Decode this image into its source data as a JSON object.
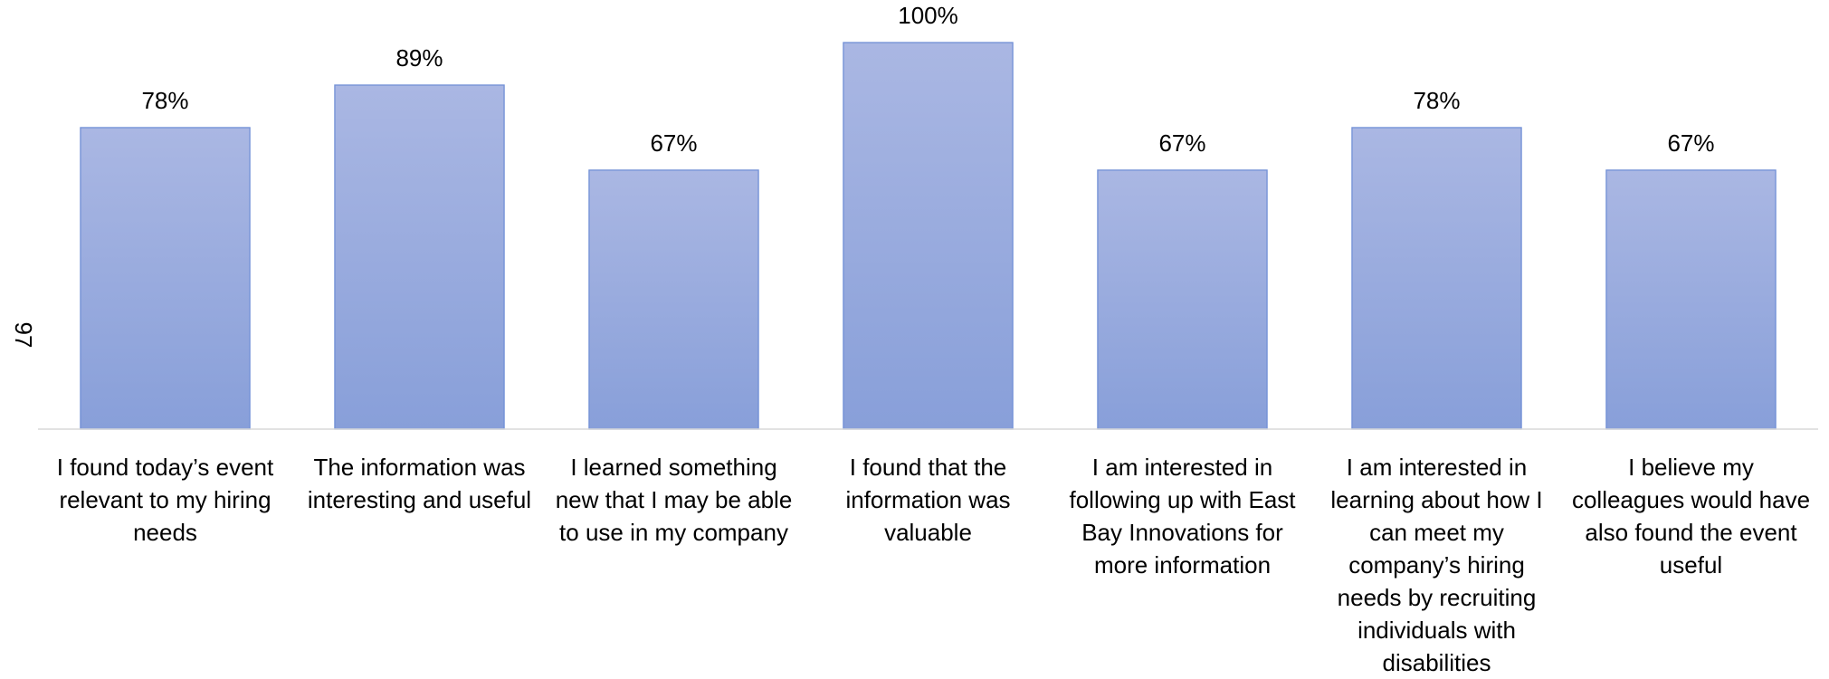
{
  "page_number": "97",
  "chart_data": {
    "type": "bar",
    "categories": [
      "I found today’s event relevant to my hiring needs",
      "The information was interesting and useful",
      "I learned something new that I may be able to use in my company",
      "I found that the information was valuable",
      "I am interested in following up with East Bay Innovations for more information",
      "I am interested in learning about how I can meet my company’s hiring needs by recruiting individuals with disabilities",
      "I believe my colleagues would have also found the event useful"
    ],
    "values": [
      78,
      89,
      67,
      100,
      67,
      78,
      67
    ],
    "value_labels": [
      "78%",
      "89%",
      "67%",
      "100%",
      "67%",
      "78%",
      "67%"
    ],
    "color": "#94a8dd",
    "ylim": [
      0,
      100
    ]
  }
}
